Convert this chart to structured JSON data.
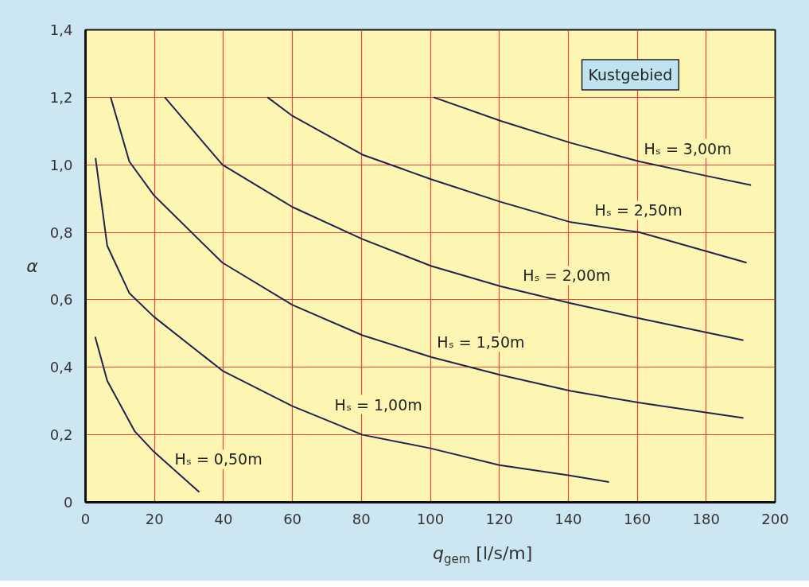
{
  "chart_data": {
    "type": "line",
    "xlabel": "q$_{gem}$ [l/s/m]",
    "ylabel": "α",
    "xlim": [
      0,
      200
    ],
    "ylim": [
      0,
      1.4
    ],
    "xticks": [
      0,
      20,
      40,
      60,
      80,
      100,
      120,
      140,
      160,
      180,
      200
    ],
    "yticks": [
      {
        "value": 0,
        "label": "0"
      },
      {
        "value": 0.2,
        "label": "0,2"
      },
      {
        "value": 0.4,
        "label": "0,4"
      },
      {
        "value": 0.6,
        "label": "0,6"
      },
      {
        "value": 0.8,
        "label": "0,8"
      },
      {
        "value": 1.0,
        "label": "1,0"
      },
      {
        "value": 1.2,
        "label": "1,2"
      },
      {
        "value": 1.4,
        "label": "1,4"
      }
    ],
    "grid": true,
    "series": [
      {
        "name": "Hₛ = 0,50m",
        "color": "#22244f",
        "x": [
          2.8,
          6.3,
          14.3,
          19.8,
          33
        ],
        "values": [
          0.49,
          0.36,
          0.21,
          0.15,
          0.03
        ]
      },
      {
        "name": "Hₛ = 1,00m",
        "color": "#22244f",
        "x": [
          2.9,
          6.3,
          12.7,
          19.8,
          39.7,
          60,
          80.3,
          100,
          120,
          140,
          151.8
        ],
        "values": [
          1.02,
          0.76,
          0.62,
          0.55,
          0.39,
          0.285,
          0.2,
          0.16,
          0.11,
          0.08,
          0.06
        ]
      },
      {
        "name": "Hₛ = 1,50m",
        "color": "#22244f",
        "x": [
          7.3,
          12.7,
          19.8,
          39.7,
          60,
          80.3,
          100.3,
          120.4,
          140.7,
          160.6,
          190.8
        ],
        "values": [
          1.2,
          1.01,
          0.91,
          0.71,
          0.585,
          0.495,
          0.43,
          0.377,
          0.33,
          0.295,
          0.25
        ]
      },
      {
        "name": "Hₛ = 2,00m",
        "color": "#22244f",
        "x": [
          23,
          39.7,
          60,
          80.3,
          100.3,
          120.4,
          140.7,
          160.6,
          190.8
        ],
        "values": [
          1.2,
          1.0,
          0.875,
          0.78,
          0.7,
          0.64,
          0.59,
          0.545,
          0.48
        ]
      },
      {
        "name": "Hₛ = 2,50m",
        "color": "#22244f",
        "x": [
          52.8,
          60,
          80.3,
          100.3,
          120.4,
          140.7,
          160.6,
          191.7
        ],
        "values": [
          1.2,
          1.145,
          1.03,
          0.957,
          0.89,
          0.83,
          0.8,
          0.71
        ]
      },
      {
        "name": "Hₛ = 3,00m",
        "color": "#22244f",
        "x": [
          101,
          120.4,
          140.7,
          160.6,
          180.6,
          193
        ],
        "values": [
          1.2,
          1.13,
          1.065,
          1.01,
          0.966,
          0.94
        ]
      }
    ],
    "annotations": [
      "Kustgebied"
    ]
  }
}
